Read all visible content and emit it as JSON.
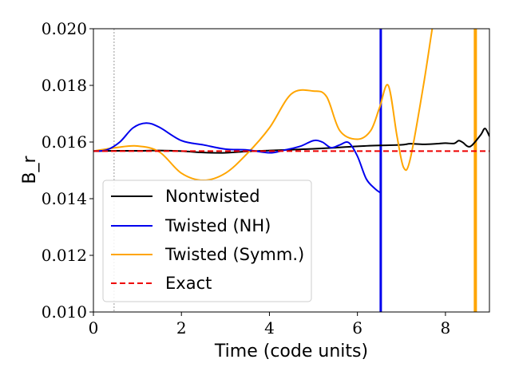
{
  "chart_data": {
    "type": "line",
    "xlabel": "Time (code units)",
    "ylabel": "B_r",
    "xlim": [
      0,
      9
    ],
    "ylim": [
      0.01,
      0.02
    ],
    "xticks": [
      0,
      2,
      4,
      6,
      8
    ],
    "xtick_labels": [
      "0",
      "2",
      "4",
      "6",
      "8"
    ],
    "yticks": [
      0.01,
      0.012,
      0.014,
      0.016,
      0.018,
      0.02
    ],
    "ytick_labels": [
      "0.010",
      "0.012",
      "0.014",
      "0.016",
      "0.018",
      "0.020"
    ],
    "grid": false,
    "legend_position": "lower-left",
    "series": [
      {
        "name": "Nontwisted",
        "color": "#000000",
        "style": "solid",
        "points": [
          [
            0,
            0.01568
          ],
          [
            0.5,
            0.01569
          ],
          [
            1,
            0.01569
          ],
          [
            1.5,
            0.0157
          ],
          [
            2,
            0.01568
          ],
          [
            2.5,
            0.01563
          ],
          [
            3,
            0.01562
          ],
          [
            3.5,
            0.01567
          ],
          [
            4,
            0.0157
          ],
          [
            4.5,
            0.01573
          ],
          [
            5,
            0.01576
          ],
          [
            5.5,
            0.0158
          ],
          [
            6,
            0.01585
          ],
          [
            6.5,
            0.01588
          ],
          [
            7,
            0.0159
          ],
          [
            7.2,
            0.01594
          ],
          [
            7.5,
            0.01592
          ],
          [
            7.8,
            0.01594
          ],
          [
            8,
            0.01596
          ],
          [
            8.2,
            0.01595
          ],
          [
            8.3,
            0.01605
          ],
          [
            8.4,
            0.01598
          ],
          [
            8.5,
            0.01585
          ],
          [
            8.6,
            0.01588
          ],
          [
            8.8,
            0.01625
          ],
          [
            8.9,
            0.01648
          ],
          [
            9,
            0.0162
          ]
        ]
      },
      {
        "name": "Twisted (NH)",
        "color": "#0000ee",
        "style": "solid",
        "points": [
          [
            0,
            0.01568
          ],
          [
            0.3,
            0.01572
          ],
          [
            0.6,
            0.016
          ],
          [
            0.9,
            0.0165
          ],
          [
            1.2,
            0.01667
          ],
          [
            1.5,
            0.01652
          ],
          [
            2,
            0.01605
          ],
          [
            2.5,
            0.0159
          ],
          [
            3,
            0.01575
          ],
          [
            3.5,
            0.01572
          ],
          [
            4,
            0.01562
          ],
          [
            4.3,
            0.0157
          ],
          [
            4.7,
            0.01585
          ],
          [
            5,
            0.01605
          ],
          [
            5.2,
            0.016
          ],
          [
            5.4,
            0.0158
          ],
          [
            5.6,
            0.0159
          ],
          [
            5.8,
            0.01598
          ],
          [
            6,
            0.0155
          ],
          [
            6.2,
            0.0147
          ],
          [
            6.4,
            0.01435
          ],
          [
            6.53,
            0.0142
          ]
        ]
      },
      {
        "name": "Twisted (Symm.)",
        "color": "#ffa500",
        "style": "solid",
        "points": [
          [
            0,
            0.01568
          ],
          [
            0.5,
            0.0158
          ],
          [
            1,
            0.01586
          ],
          [
            1.5,
            0.01565
          ],
          [
            2,
            0.0149
          ],
          [
            2.5,
            0.01465
          ],
          [
            3,
            0.0149
          ],
          [
            3.5,
            0.0156
          ],
          [
            4,
            0.0165
          ],
          [
            4.5,
            0.0177
          ],
          [
            5,
            0.0178
          ],
          [
            5.3,
            0.0176
          ],
          [
            5.6,
            0.0164
          ],
          [
            6,
            0.0161
          ],
          [
            6.3,
            0.0164
          ],
          [
            6.5,
            0.0172
          ],
          [
            6.7,
            0.018
          ],
          [
            6.9,
            0.0162
          ],
          [
            7.05,
            0.0151
          ],
          [
            7.2,
            0.0154
          ],
          [
            7.5,
            0.018
          ],
          [
            7.7,
            0.02
          ],
          [
            7.73,
            0.0201
          ]
        ]
      },
      {
        "name": "Exact",
        "color": "#ee0000",
        "style": "dashed",
        "points": [
          [
            0,
            0.01568
          ],
          [
            9,
            0.01568
          ]
        ]
      }
    ],
    "vlines": [
      {
        "x": 0.47,
        "color": "#808080",
        "style": "dotted",
        "width": 0.8
      },
      {
        "x": 6.53,
        "color": "#0000ee",
        "style": "solid",
        "width": 3
      },
      {
        "x": 8.68,
        "color": "#ffa500",
        "style": "solid",
        "width": 4
      }
    ]
  }
}
